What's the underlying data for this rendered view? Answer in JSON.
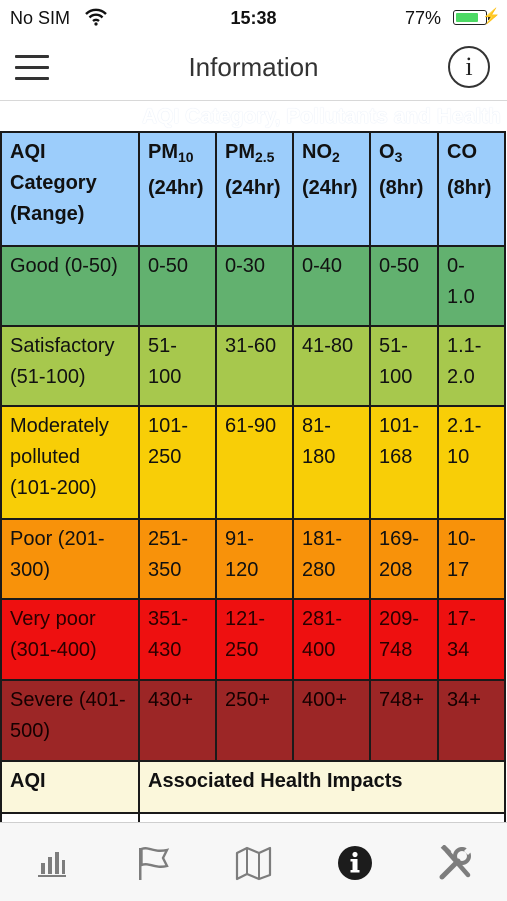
{
  "status_bar": {
    "carrier": "No SIM",
    "time": "15:38",
    "battery_percent": "77%",
    "battery_level": 0.77
  },
  "nav": {
    "title": "Information"
  },
  "section_title": "AQI Category, Pollutants and Health",
  "table": {
    "header": {
      "category": [
        "AQI",
        "Category",
        "(Range)"
      ],
      "pollutants": [
        {
          "base": "PM",
          "sub": "10",
          "period": "(24hr)"
        },
        {
          "base": "PM",
          "sub": "2.5",
          "period": "(24hr)"
        },
        {
          "base": "NO",
          "sub": "2",
          "period": "(24hr)"
        },
        {
          "base": "O",
          "sub": "3",
          "period": "(8hr)"
        },
        {
          "base": "CO",
          "sub": "",
          "period": "(8hr)"
        }
      ]
    },
    "rows": [
      {
        "category": "Good (0-50)",
        "pm10": "0-50",
        "pm25": "0-30",
        "no2": "0-40",
        "o3": "0-50",
        "co": "0- 1.0",
        "color": "#62b16f"
      },
      {
        "category": "Satisfactory (51-100)",
        "pm10": "51- 100",
        "pm25": "31-60",
        "no2": "41-80",
        "o3": "51- 100",
        "co": "1.1- 2.0",
        "color": "#a7c84d"
      },
      {
        "category": "Moderately polluted (101-200)",
        "pm10": "101- 250",
        "pm25": "61-90",
        "no2": "81- 180",
        "o3": "101- 168",
        "co": "2.1- 10",
        "color": "#f8ce07"
      },
      {
        "category": "Poor (201- 300)",
        "pm10": "251- 350",
        "pm25": "91- 120",
        "no2": "181- 280",
        "o3": "169- 208",
        "co": "10- 17",
        "color": "#f8920a"
      },
      {
        "category": "Very poor (301-400)",
        "pm10": "351- 430",
        "pm25": "121- 250",
        "no2": "281- 400",
        "o3": "209- 748",
        "co": "17- 34",
        "color": "#ee1010"
      },
      {
        "category": "Severe (401-500)",
        "pm10": "430+",
        "pm25": "250+",
        "no2": "400+",
        "o3": "748+",
        "co": "34+",
        "color": "#9c2626"
      }
    ],
    "health_header": {
      "aqi": "AQI",
      "impacts": "Associated Health Impacts"
    }
  },
  "tabbar": {
    "tabs": [
      {
        "icon": "bar-chart-icon",
        "active": false
      },
      {
        "icon": "flag-icon",
        "active": false
      },
      {
        "icon": "map-icon",
        "active": false
      },
      {
        "icon": "info-icon",
        "active": true
      },
      {
        "icon": "tools-icon",
        "active": false
      }
    ]
  }
}
